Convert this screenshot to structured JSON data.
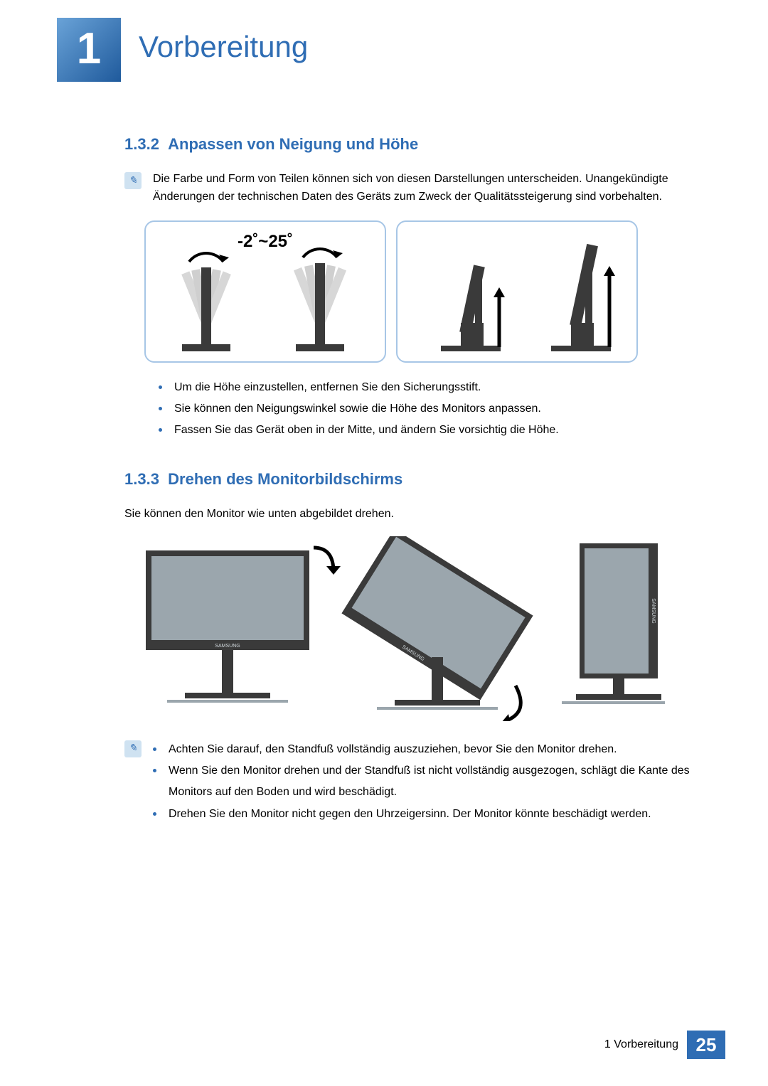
{
  "colors": {
    "accent": "#2f6db4",
    "bullet": "#2f6db4",
    "note_bg": "#cfe2f1",
    "note_fg": "#2f6db4",
    "diagram_border": "#a7c6e6",
    "monitor_fill": "#9ba6ad",
    "monitor_stroke": "#3a3a3a",
    "footer_bg": "#2f6db4"
  },
  "chapter": {
    "number": "1",
    "title": "Vorbereitung"
  },
  "section132": {
    "number": "1.3.2",
    "title": "Anpassen von Neigung und Höhe",
    "note": "Die Farbe und Form von Teilen können sich von diesen Darstellungen unterscheiden. Unangekündigte Änderungen der technischen Daten des Geräts zum Zweck der Qualitätssteigerung sind vorbehalten.",
    "angle_label": "-2˚~25˚",
    "bullets": [
      "Um die Höhe einzustellen, entfernen Sie den Sicherungsstift.",
      "Sie können den Neigungswinkel sowie die Höhe des Monitors anpassen.",
      "Fassen Sie das Gerät oben in der Mitte, und ändern Sie vorsichtig die Höhe."
    ]
  },
  "section133": {
    "number": "1.3.3",
    "title": "Drehen des Monitorbildschirms",
    "intro": "Sie können den Monitor wie unten abgebildet drehen.",
    "bullets": [
      "Achten Sie darauf, den Standfuß vollständig auszuziehen, bevor Sie den Monitor drehen.",
      "Wenn Sie den Monitor drehen und der Standfuß ist nicht vollständig ausgezogen, schlägt die Kante des Monitors auf den Boden und wird beschädigt.",
      "Drehen Sie den Monitor nicht gegen den Uhrzeigersinn. Der Monitor könnte beschädigt werden."
    ]
  },
  "footer": {
    "label": "1 Vorbereitung",
    "page": "25"
  }
}
